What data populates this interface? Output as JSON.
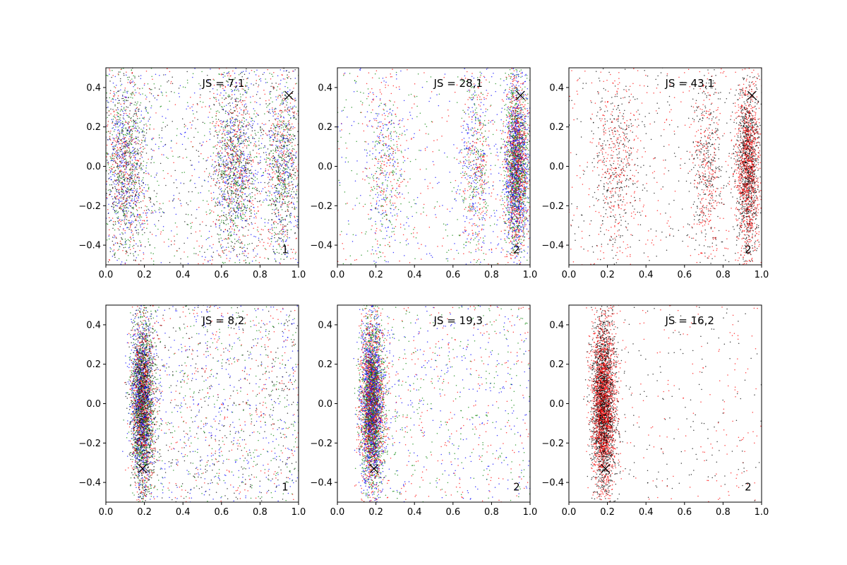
{
  "chart_data": [
    {
      "type": "scatter",
      "annotation": "JS = 7,1",
      "corner_label": "1",
      "xlim": [
        0.0,
        1.0
      ],
      "ylim": [
        -0.5,
        0.5
      ],
      "xticks": [
        "0.0",
        "0.2",
        "0.4",
        "0.6",
        "0.8",
        "1.0"
      ],
      "yticks": [
        "-0.4",
        "-0.2",
        "0.0",
        "0.2",
        "0.4"
      ],
      "marker_point": {
        "x": 0.95,
        "y": 0.36
      },
      "colors": [
        "#0000ff",
        "#008000",
        "#ff0000",
        "#000000"
      ],
      "clusters": [
        {
          "x_center": 0.1,
          "x_spread": 0.06,
          "y_spread": 0.24,
          "weight": 0.3
        },
        {
          "x_center": 0.67,
          "x_spread": 0.06,
          "y_spread": 0.24,
          "weight": 0.28
        },
        {
          "x_center": 0.92,
          "x_spread": 0.05,
          "y_spread": 0.24,
          "weight": 0.22
        },
        {
          "x_center": 0.5,
          "x_spread": 0.5,
          "y_spread": 0.5,
          "weight": 0.2,
          "uniform": true
        }
      ],
      "point_count": 5000
    },
    {
      "type": "scatter",
      "annotation": "JS = 28,1",
      "corner_label": "2",
      "xlim": [
        0.0,
        1.0
      ],
      "ylim": [
        -0.5,
        0.5
      ],
      "xticks": [
        "0.0",
        "0.2",
        "0.4",
        "0.6",
        "0.8",
        "1.0"
      ],
      "yticks": [
        "-0.4",
        "-0.2",
        "0.0",
        "0.2",
        "0.4"
      ],
      "marker_point": {
        "x": 0.95,
        "y": 0.36
      },
      "colors": [
        "#0000ff",
        "#ff0000",
        "#008000"
      ],
      "clusters": [
        {
          "x_center": 0.93,
          "x_spread": 0.03,
          "y_spread": 0.22,
          "weight": 0.6
        },
        {
          "x_center": 0.72,
          "x_spread": 0.04,
          "y_spread": 0.24,
          "weight": 0.15
        },
        {
          "x_center": 0.25,
          "x_spread": 0.05,
          "y_spread": 0.24,
          "weight": 0.12
        },
        {
          "x_center": 0.5,
          "x_spread": 0.5,
          "y_spread": 0.5,
          "weight": 0.13,
          "uniform": true
        }
      ],
      "point_count": 4500
    },
    {
      "type": "scatter",
      "annotation": "JS = 43,1",
      "corner_label": "2",
      "xlim": [
        0.0,
        1.0
      ],
      "ylim": [
        -0.5,
        0.5
      ],
      "xticks": [
        "0.0",
        "0.2",
        "0.4",
        "0.6",
        "0.8",
        "1.0"
      ],
      "yticks": [
        "-0.4",
        "-0.2",
        "0.0",
        "0.2",
        "0.4"
      ],
      "marker_point": {
        "x": 0.95,
        "y": 0.36
      },
      "colors": [
        "#ff0000",
        "#000000"
      ],
      "clusters": [
        {
          "x_center": 0.93,
          "x_spread": 0.03,
          "y_spread": 0.22,
          "weight": 0.55
        },
        {
          "x_center": 0.72,
          "x_spread": 0.04,
          "y_spread": 0.24,
          "weight": 0.15
        },
        {
          "x_center": 0.25,
          "x_spread": 0.06,
          "y_spread": 0.24,
          "weight": 0.15
        },
        {
          "x_center": 0.5,
          "x_spread": 0.5,
          "y_spread": 0.5,
          "weight": 0.15,
          "uniform": true
        }
      ],
      "point_count": 3500
    },
    {
      "type": "scatter",
      "annotation": "JS = 8,2",
      "corner_label": "1",
      "xlim": [
        0.0,
        1.0
      ],
      "ylim": [
        -0.5,
        0.5
      ],
      "xticks": [
        "0.0",
        "0.2",
        "0.4",
        "0.6",
        "0.8",
        "1.0"
      ],
      "yticks": [
        "-0.4",
        "-0.2",
        "0.0",
        "0.2",
        "0.4"
      ],
      "marker_point": {
        "x": 0.19,
        "y": -0.33
      },
      "colors": [
        "#0000ff",
        "#008000",
        "#ff0000",
        "#000000"
      ],
      "clusters": [
        {
          "x_center": 0.19,
          "x_spread": 0.03,
          "y_spread": 0.22,
          "weight": 0.72
        },
        {
          "x_center": 0.6,
          "x_spread": 0.4,
          "y_spread": 0.5,
          "weight": 0.28,
          "uniform": true
        }
      ],
      "point_count": 5000
    },
    {
      "type": "scatter",
      "annotation": "JS = 19,3",
      "corner_label": "2",
      "xlim": [
        0.0,
        1.0
      ],
      "ylim": [
        -0.5,
        0.5
      ],
      "xticks": [
        "0.0",
        "0.2",
        "0.4",
        "0.6",
        "0.8",
        "1.0"
      ],
      "yticks": [
        "-0.4",
        "-0.2",
        "0.0",
        "0.2",
        "0.4"
      ],
      "marker_point": {
        "x": 0.19,
        "y": -0.33
      },
      "colors": [
        "#0000ff",
        "#008000",
        "#ff0000"
      ],
      "clusters": [
        {
          "x_center": 0.18,
          "x_spread": 0.03,
          "y_spread": 0.22,
          "weight": 0.82
        },
        {
          "x_center": 0.6,
          "x_spread": 0.4,
          "y_spread": 0.5,
          "weight": 0.18,
          "uniform": true
        }
      ],
      "point_count": 5000
    },
    {
      "type": "scatter",
      "annotation": "JS = 16,2",
      "corner_label": "2",
      "xlim": [
        0.0,
        1.0
      ],
      "ylim": [
        -0.5,
        0.5
      ],
      "xticks": [
        "0.0",
        "0.2",
        "0.4",
        "0.6",
        "0.8",
        "1.0"
      ],
      "yticks": [
        "-0.4",
        "-0.2",
        "0.0",
        "0.2",
        "0.4"
      ],
      "marker_point": {
        "x": 0.19,
        "y": -0.33
      },
      "colors": [
        "#ff0000",
        "#000000"
      ],
      "clusters": [
        {
          "x_center": 0.18,
          "x_spread": 0.03,
          "y_spread": 0.22,
          "weight": 0.92
        },
        {
          "x_center": 0.6,
          "x_spread": 0.4,
          "y_spread": 0.5,
          "weight": 0.08,
          "uniform": true
        }
      ],
      "point_count": 4000
    }
  ]
}
